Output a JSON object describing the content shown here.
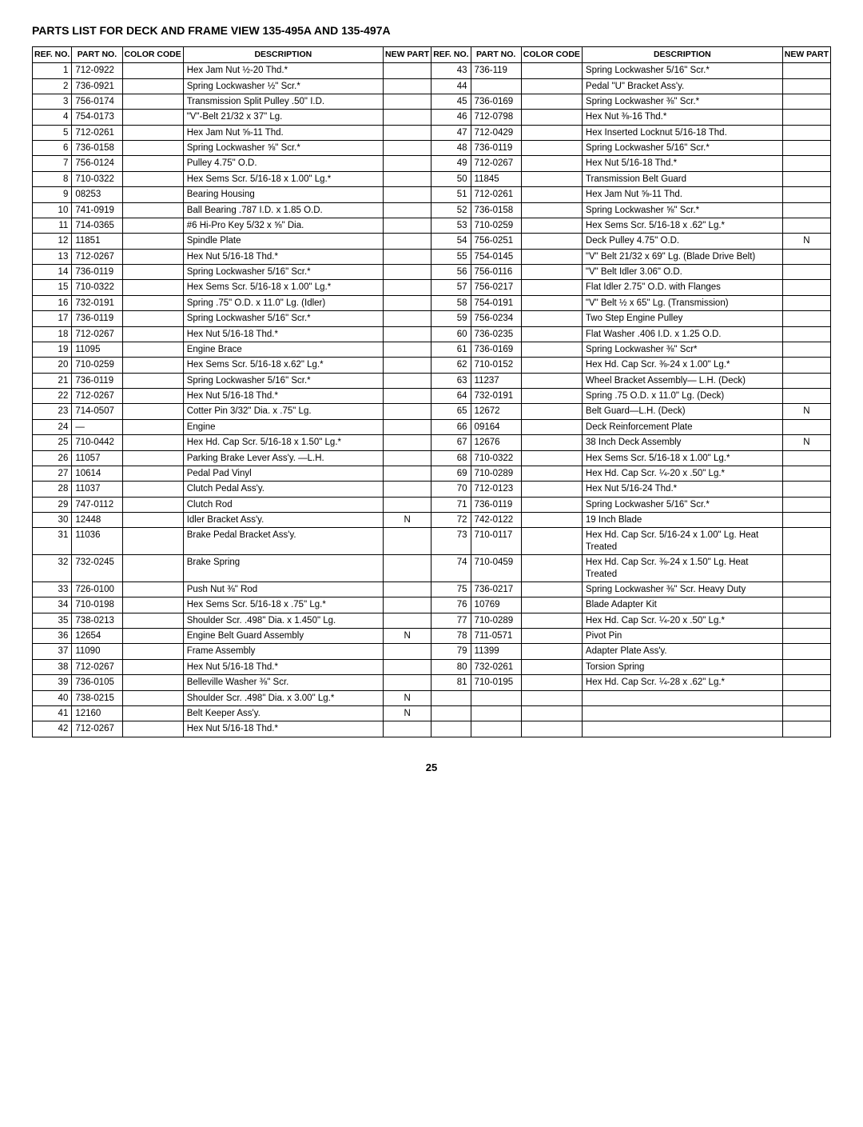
{
  "title": "PARTS LIST FOR DECK AND FRAME VIEW 135-495A AND 135-497A",
  "headers": {
    "ref": "REF. NO.",
    "part": "PART NO.",
    "color": "COLOR CODE",
    "desc": "DESCRIPTION",
    "new": "NEW PART"
  },
  "left": [
    {
      "ref": "1",
      "part": "712-0922",
      "desc": "Hex Jam Nut ½-20 Thd.*"
    },
    {
      "ref": "2",
      "part": "736-0921",
      "desc": "Spring Lockwasher ½\" Scr.*"
    },
    {
      "ref": "3",
      "part": "756-0174",
      "desc": "Transmission Split Pulley .50\" I.D."
    },
    {
      "ref": "4",
      "part": "754-0173",
      "desc": "\"V\"-Belt 21/32 x 37\" Lg."
    },
    {
      "ref": "5",
      "part": "712-0261",
      "desc": "Hex Jam Nut ⅝-11 Thd."
    },
    {
      "ref": "6",
      "part": "736-0158",
      "desc": "Spring Lockwasher ⅝\" Scr.*"
    },
    {
      "ref": "7",
      "part": "756-0124",
      "desc": "Pulley 4.75\" O.D."
    },
    {
      "ref": "8",
      "part": "710-0322",
      "desc": "Hex Sems Scr. 5/16-18 x 1.00\" Lg.*"
    },
    {
      "ref": "9",
      "part": "08253",
      "desc": "Bearing Housing"
    },
    {
      "ref": "10",
      "part": "741-0919",
      "desc": "Ball Bearing .787 I.D. x 1.85 O.D."
    },
    {
      "ref": "11",
      "part": "714-0365",
      "desc": "#6 Hi-Pro Key 5/32 x ⅝\" Dia."
    },
    {
      "ref": "12",
      "part": "11851",
      "desc": "Spindle Plate"
    },
    {
      "ref": "13",
      "part": "712-0267",
      "desc": "Hex Nut 5/16-18 Thd.*"
    },
    {
      "ref": "14",
      "part": "736-0119",
      "desc": "Spring Lockwasher 5/16\" Scr.*"
    },
    {
      "ref": "15",
      "part": "710-0322",
      "desc": "Hex Sems Scr. 5/16-18 x 1.00\" Lg.*"
    },
    {
      "ref": "16",
      "part": "732-0191",
      "desc": "Spring .75\" O.D. x 11.0\" Lg. (Idler)"
    },
    {
      "ref": "17",
      "part": "736-0119",
      "desc": "Spring Lockwasher 5/16\" Scr.*"
    },
    {
      "ref": "18",
      "part": "712-0267",
      "desc": "Hex Nut 5/16-18 Thd.*"
    },
    {
      "ref": "19",
      "part": "11095",
      "desc": "Engine Brace"
    },
    {
      "ref": "20",
      "part": "710-0259",
      "desc": "Hex Sems Scr. 5/16-18 x.62\" Lg.*"
    },
    {
      "ref": "21",
      "part": "736-0119",
      "desc": "Spring Lockwasher 5/16\" Scr.*"
    },
    {
      "ref": "22",
      "part": "712-0267",
      "desc": "Hex Nut 5/16-18 Thd.*"
    },
    {
      "ref": "23",
      "part": "714-0507",
      "desc": "Cotter Pin 3/32\" Dia. x .75\" Lg."
    },
    {
      "ref": "24",
      "part": "—",
      "desc": "Engine"
    },
    {
      "ref": "25",
      "part": "710-0442",
      "desc": "Hex Hd. Cap Scr. 5/16-18 x 1.50\" Lg.*"
    },
    {
      "ref": "26",
      "part": "11057",
      "desc": "Parking Brake Lever Ass'y. —L.H."
    },
    {
      "ref": "27",
      "part": "10614",
      "desc": "Pedal Pad Vinyl"
    },
    {
      "ref": "28",
      "part": "11037",
      "desc": "Clutch Pedal Ass'y."
    },
    {
      "ref": "29",
      "part": "747-0112",
      "desc": "Clutch Rod"
    },
    {
      "ref": "30",
      "part": "12448",
      "desc": "Idler Bracket Ass'y.",
      "new": "N"
    },
    {
      "ref": "31",
      "part": "11036",
      "desc": "Brake Pedal Bracket Ass'y."
    },
    {
      "ref": "32",
      "part": "732-0245",
      "desc": "Brake Spring"
    },
    {
      "ref": "33",
      "part": "726-0100",
      "desc": "Push Nut ⅜\" Rod"
    },
    {
      "ref": "34",
      "part": "710-0198",
      "desc": "Hex Sems Scr. 5/16-18 x .75\" Lg.*"
    },
    {
      "ref": "35",
      "part": "738-0213",
      "desc": "Shoulder Scr. .498\" Dia. x 1.450\" Lg."
    },
    {
      "ref": "36",
      "part": "12654",
      "desc": "Engine Belt Guard Assembly",
      "new": "N"
    },
    {
      "ref": "37",
      "part": "11090",
      "desc": "Frame Assembly"
    },
    {
      "ref": "38",
      "part": "712-0267",
      "desc": "Hex Nut 5/16-18 Thd.*"
    },
    {
      "ref": "39",
      "part": "736-0105",
      "desc": "Belleville Washer ⅜\" Scr."
    },
    {
      "ref": "40",
      "part": "738-0215",
      "desc": "Shoulder Scr. .498\" Dia. x 3.00\" Lg.*",
      "new": "N"
    },
    {
      "ref": "41",
      "part": "12160",
      "desc": "Belt Keeper Ass'y.",
      "new": "N"
    },
    {
      "ref": "42",
      "part": "712-0267",
      "desc": "Hex Nut 5/16-18 Thd.*"
    }
  ],
  "right": [
    {
      "ref": "43",
      "part": "736-119",
      "desc": "Spring Lockwasher 5/16\" Scr.*"
    },
    {
      "ref": "44",
      "part": "",
      "desc": "Pedal \"U\" Bracket Ass'y."
    },
    {
      "ref": "45",
      "part": "736-0169",
      "desc": "Spring Lockwasher ⅜\" Scr.*"
    },
    {
      "ref": "46",
      "part": "712-0798",
      "desc": "Hex Nut ⅜-16 Thd.*"
    },
    {
      "ref": "47",
      "part": "712-0429",
      "desc": "Hex Inserted Locknut 5/16-18 Thd."
    },
    {
      "ref": "48",
      "part": "736-0119",
      "desc": "Spring Lockwasher 5/16\" Scr.*"
    },
    {
      "ref": "49",
      "part": "712-0267",
      "desc": "Hex Nut 5/16-18 Thd.*"
    },
    {
      "ref": "50",
      "part": "11845",
      "desc": "Transmission Belt Guard"
    },
    {
      "ref": "51",
      "part": "712-0261",
      "desc": "Hex Jam Nut ⅝-11 Thd."
    },
    {
      "ref": "52",
      "part": "736-0158",
      "desc": "Spring Lockwasher ⅝\" Scr.*"
    },
    {
      "ref": "53",
      "part": "710-0259",
      "desc": "Hex Sems Scr. 5/16-18 x .62\" Lg.*"
    },
    {
      "ref": "54",
      "part": "756-0251",
      "desc": "Deck Pulley 4.75\" O.D.",
      "new": "N"
    },
    {
      "ref": "55",
      "part": "754-0145",
      "desc": "\"V\" Belt 21/32 x 69\" Lg. (Blade Drive Belt)"
    },
    {
      "ref": "56",
      "part": "756-0116",
      "desc": "\"V\" Belt Idler 3.06\" O.D."
    },
    {
      "ref": "57",
      "part": "756-0217",
      "desc": "Flat Idler 2.75\" O.D. with Flanges"
    },
    {
      "ref": "58",
      "part": "754-0191",
      "desc": "\"V\" Belt ½ x 65\" Lg. (Transmission)"
    },
    {
      "ref": "59",
      "part": "756-0234",
      "desc": "Two Step Engine Pulley"
    },
    {
      "ref": "60",
      "part": "736-0235",
      "desc": "Flat Washer .406 I.D. x 1.25 O.D."
    },
    {
      "ref": "61",
      "part": "736-0169",
      "desc": "Spring Lockwasher ⅜\" Scr*"
    },
    {
      "ref": "62",
      "part": "710-0152",
      "desc": "Hex Hd. Cap Scr. ⅜-24 x 1.00\" Lg.*"
    },
    {
      "ref": "63",
      "part": "11237",
      "desc": "Wheel Bracket Assembly— L.H. (Deck)"
    },
    {
      "ref": "64",
      "part": "732-0191",
      "desc": "Spring .75 O.D. x 11.0\" Lg. (Deck)"
    },
    {
      "ref": "65",
      "part": "12672",
      "desc": "Belt Guard—L.H. (Deck)",
      "new": "N"
    },
    {
      "ref": "66",
      "part": "09164",
      "desc": "Deck Reinforcement Plate"
    },
    {
      "ref": "67",
      "part": "12676",
      "desc": "38 Inch Deck Assembly",
      "new": "N"
    },
    {
      "ref": "68",
      "part": "710-0322",
      "desc": "Hex Sems Scr. 5/16-18 x 1.00\" Lg.*"
    },
    {
      "ref": "69",
      "part": "710-0289",
      "desc": "Hex Hd. Cap Scr. ¼-20 x .50\" Lg.*"
    },
    {
      "ref": "70",
      "part": "712-0123",
      "desc": "Hex Nut 5/16-24 Thd.*"
    },
    {
      "ref": "71",
      "part": "736-0119",
      "desc": "Spring Lockwasher 5/16\" Scr.*"
    },
    {
      "ref": "72",
      "part": "742-0122",
      "desc": "19 Inch Blade"
    },
    {
      "ref": "73",
      "part": "710-0117",
      "desc": "Hex Hd. Cap Scr. 5/16-24 x 1.00\" Lg. Heat Treated"
    },
    {
      "ref": "74",
      "part": "710-0459",
      "desc": "Hex Hd. Cap Scr. ⅜-24 x 1.50\" Lg. Heat Treated"
    },
    {
      "ref": "75",
      "part": "736-0217",
      "desc": "Spring Lockwasher ⅜\" Scr. Heavy Duty"
    },
    {
      "ref": "76",
      "part": "10769",
      "desc": "Blade Adapter Kit"
    },
    {
      "ref": "77",
      "part": "710-0289",
      "desc": "Hex Hd. Cap Scr. ¼-20 x .50\" Lg.*"
    },
    {
      "ref": "78",
      "part": "711-0571",
      "desc": "Pivot Pin"
    },
    {
      "ref": "79",
      "part": "11399",
      "desc": "Adapter Plate Ass'y."
    },
    {
      "ref": "80",
      "part": "732-0261",
      "desc": "Torsion Spring"
    },
    {
      "ref": "81",
      "part": "710-0195",
      "desc": "Hex Hd. Cap Scr. ¼-28 x .62\" Lg.*"
    }
  ],
  "page": "25",
  "style": {
    "title_fontsize": 14,
    "body_fontsize": 11.5,
    "header_fontsize": 10.5,
    "border_color": "#000000",
    "background_color": "#ffffff"
  }
}
